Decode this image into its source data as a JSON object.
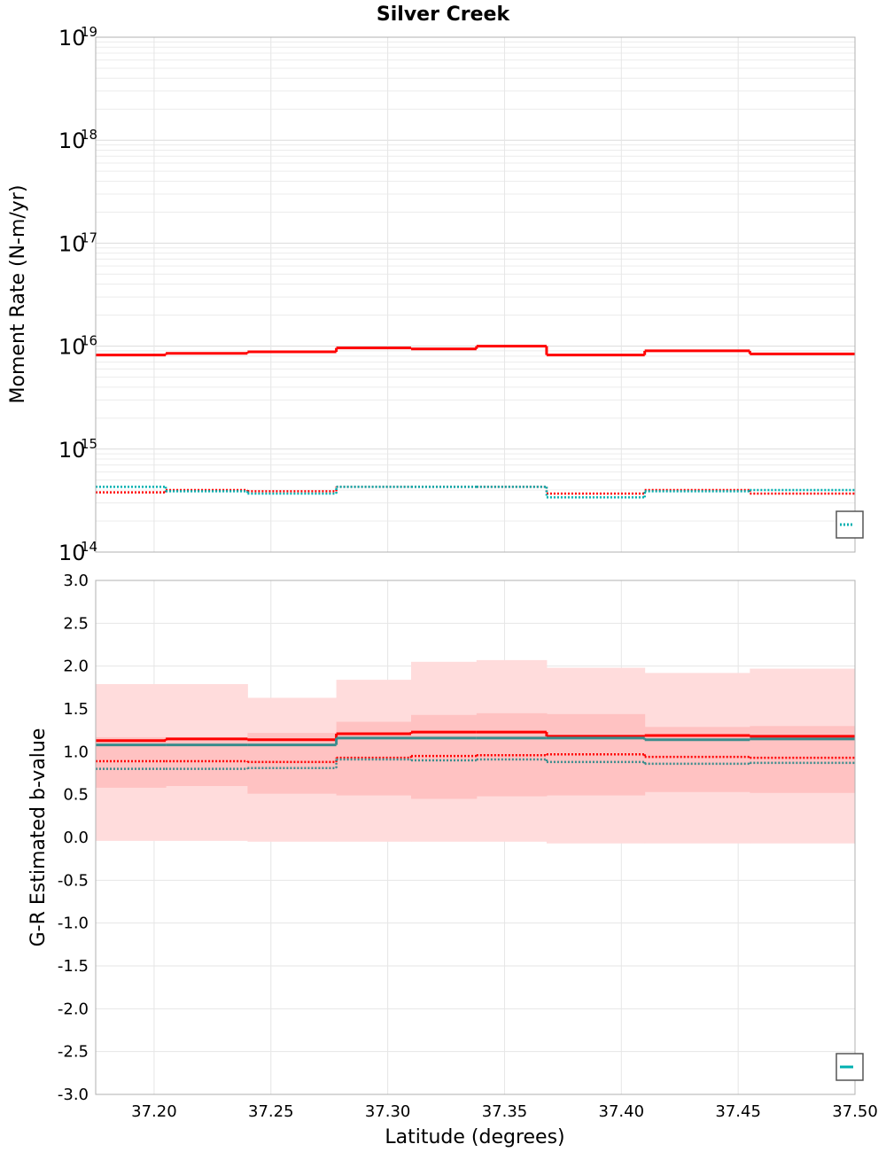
{
  "chart_data": [
    {
      "type": "line",
      "step": true,
      "title": "Silver Creek",
      "xlabel": "",
      "ylabel": "Moment Rate (N-m/yr)",
      "yscale": "log",
      "xlim": [
        37.175,
        37.5
      ],
      "ylim": [
        100000000000000.0,
        1e+19
      ],
      "y_ticks": [
        {
          "base": "10",
          "exp": "14",
          "value": 100000000000000.0
        },
        {
          "base": "10",
          "exp": "15",
          "value": 1000000000000000.0
        },
        {
          "base": "10",
          "exp": "16",
          "value": 1e+16
        },
        {
          "base": "10",
          "exp": "17",
          "value": 1e+17
        },
        {
          "base": "10",
          "exp": "18",
          "value": 1e+18
        },
        {
          "base": "10",
          "exp": "19",
          "value": 1e+19
        }
      ],
      "x_edges": [
        37.175,
        37.205,
        37.24,
        37.278,
        37.31,
        37.338,
        37.368,
        37.41,
        37.455,
        37.5
      ],
      "series": [
        {
          "name": "moment-rate-red-solid",
          "color": "#ff0000",
          "dash": "solid",
          "values": [
            8200000000000000.0,
            8500000000000000.0,
            8800000000000000.0,
            9600000000000000.0,
            9400000000000000.0,
            1e+16,
            8200000000000000.0,
            9000000000000000.0,
            8400000000000000.0
          ]
        },
        {
          "name": "moment-rate-red-dotted",
          "color": "#ff0000",
          "dash": "dotted",
          "values": [
            380000000000000.0,
            400000000000000.0,
            390000000000000.0,
            430000000000000.0,
            430000000000000.0,
            430000000000000.0,
            370000000000000.0,
            400000000000000.0,
            370000000000000.0
          ]
        },
        {
          "name": "moment-rate-cyan-dotted",
          "color": "#00b0b0",
          "dash": "dotted",
          "values": [
            430000000000000.0,
            390000000000000.0,
            370000000000000.0,
            430000000000000.0,
            430000000000000.0,
            430000000000000.0,
            340000000000000.0,
            390000000000000.0,
            400000000000000.0
          ]
        }
      ]
    },
    {
      "type": "line",
      "step": true,
      "title": "",
      "xlabel": "Latitude (degrees)",
      "ylabel": "G-R Estimated b-value",
      "xlim": [
        37.175,
        37.5
      ],
      "ylim": [
        -3.0,
        3.0
      ],
      "x_ticks": [
        "37.20",
        "37.25",
        "37.30",
        "37.35",
        "37.40",
        "37.45",
        "37.50"
      ],
      "x_tick_values": [
        37.2,
        37.25,
        37.3,
        37.35,
        37.4,
        37.45,
        37.5
      ],
      "y_ticks": [
        "-3.0",
        "-2.5",
        "-2.0",
        "-1.5",
        "-1.0",
        "-0.5",
        "0.0",
        "0.5",
        "1.0",
        "1.5",
        "2.0",
        "2.5",
        "3.0"
      ],
      "y_tick_values": [
        -3.0,
        -2.5,
        -2.0,
        -1.5,
        -1.0,
        -0.5,
        0.0,
        0.5,
        1.0,
        1.5,
        2.0,
        2.5,
        3.0
      ],
      "x_edges": [
        37.175,
        37.205,
        37.24,
        37.278,
        37.31,
        37.338,
        37.368,
        37.41,
        37.455,
        37.5
      ],
      "bands": [
        {
          "name": "outer-band",
          "color": "#ffdcdc",
          "lower": [
            -0.04,
            -0.04,
            -0.05,
            -0.05,
            -0.05,
            -0.05,
            -0.07,
            -0.07,
            -0.07
          ],
          "upper": [
            1.79,
            1.79,
            1.63,
            1.84,
            2.05,
            2.07,
            1.98,
            1.92,
            1.97
          ]
        },
        {
          "name": "inner-band",
          "color": "#ffc2c2",
          "lower": [
            0.58,
            0.6,
            0.51,
            0.49,
            0.45,
            0.48,
            0.49,
            0.53,
            0.52
          ],
          "upper": [
            1.17,
            1.17,
            1.22,
            1.35,
            1.43,
            1.45,
            1.44,
            1.29,
            1.3
          ]
        }
      ],
      "series": [
        {
          "name": "b-value-red-solid",
          "color": "#ff0000",
          "dash": "solid",
          "values": [
            1.13,
            1.15,
            1.14,
            1.21,
            1.23,
            1.23,
            1.18,
            1.19,
            1.18
          ]
        },
        {
          "name": "b-value-teal-solid",
          "color": "#3a8c8c",
          "dash": "solid",
          "values": [
            1.08,
            1.08,
            1.08,
            1.16,
            1.16,
            1.16,
            1.16,
            1.14,
            1.15
          ]
        },
        {
          "name": "b-value-red-dotted",
          "color": "#ff0000",
          "dash": "dotted",
          "values": [
            0.89,
            0.89,
            0.88,
            0.93,
            0.95,
            0.96,
            0.97,
            0.94,
            0.93
          ]
        },
        {
          "name": "b-value-teal-dotted",
          "color": "#3a8c8c",
          "dash": "dotted",
          "values": [
            0.8,
            0.8,
            0.81,
            0.91,
            0.9,
            0.91,
            0.88,
            0.86,
            0.87
          ]
        }
      ]
    }
  ]
}
